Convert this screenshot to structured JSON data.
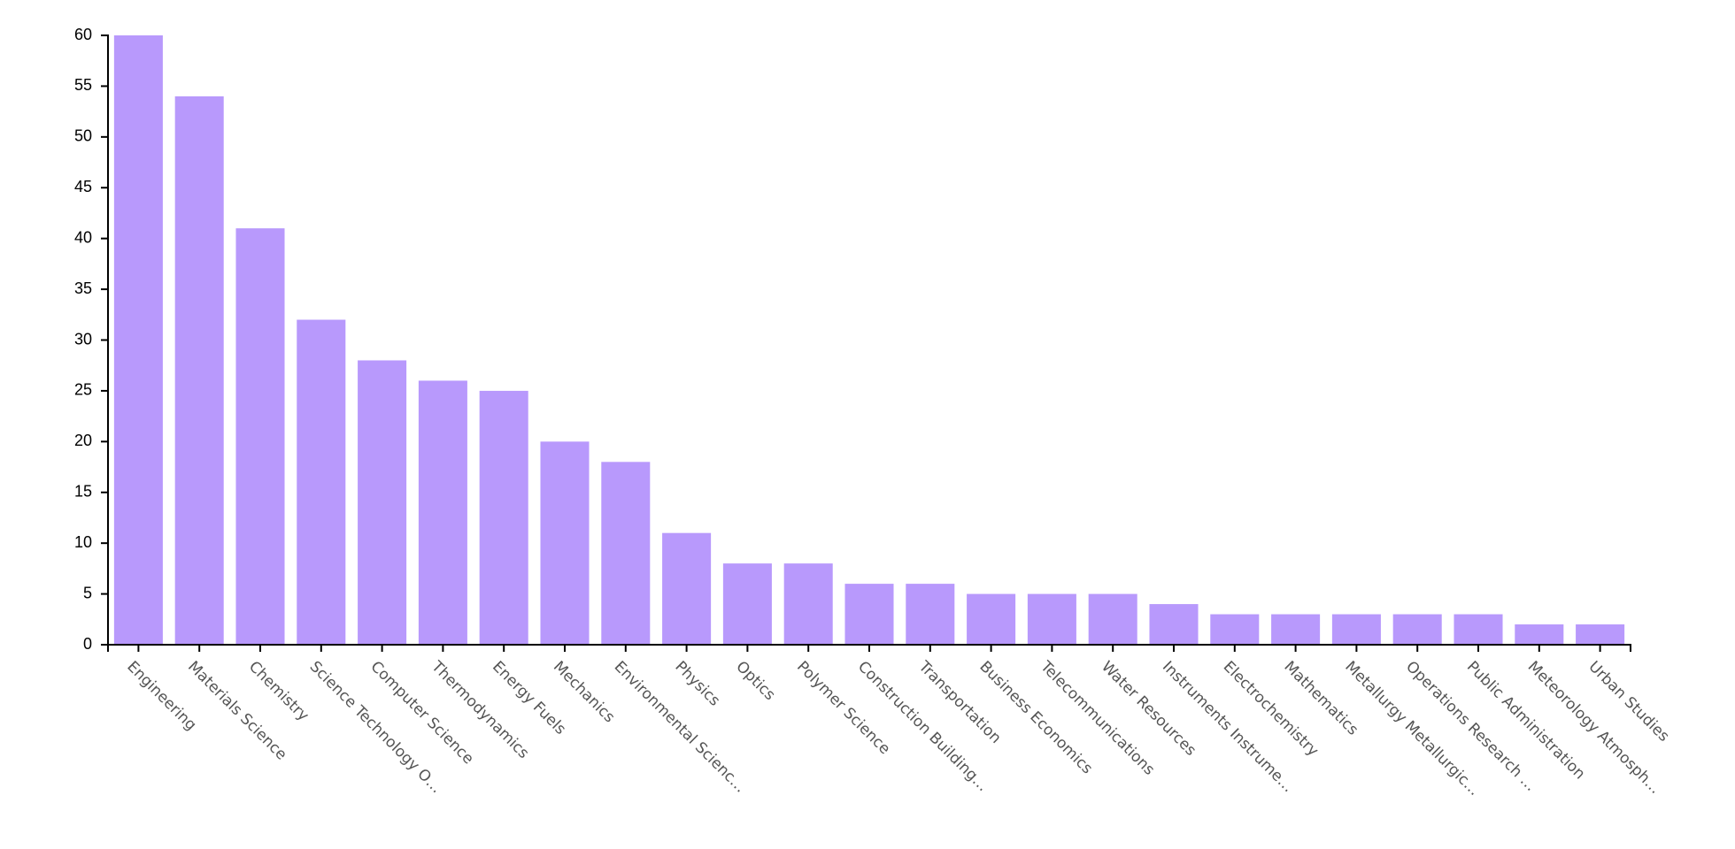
{
  "colors": {
    "bar": "#b899fc",
    "axis": "#000000",
    "tick_text": "#000000",
    "category_text": "#555555"
  },
  "chart_data": {
    "type": "bar",
    "categories": [
      "Engineering",
      "Materials Science",
      "Chemistry",
      "Science Technology O…",
      "Computer Science",
      "Thermodynamics",
      "Energy Fuels",
      "Mechanics",
      "Environmental Scienc…",
      "Physics",
      "Optics",
      "Polymer Science",
      "Construction Building…",
      "Transportation",
      "Business Economics",
      "Telecommunications",
      "Water Resources",
      "Instruments Instrume…",
      "Electrochemistry",
      "Mathematics",
      "Metallurgy Metallurgic…",
      "Operations Research …",
      "Public Administration",
      "Meteorology Atmosph…",
      "Urban Studies"
    ],
    "values": [
      60,
      54,
      41,
      32,
      28,
      26,
      25,
      20,
      18,
      11,
      8,
      8,
      6,
      6,
      5,
      5,
      5,
      4,
      3,
      3,
      3,
      3,
      3,
      2,
      2
    ],
    "ylim": [
      0,
      60
    ],
    "yticks": [
      "0",
      "5",
      "10",
      "15",
      "20",
      "25",
      "30",
      "35",
      "40",
      "45",
      "50",
      "55",
      "60"
    ],
    "title": "",
    "xlabel": "",
    "ylabel": "",
    "grid": false,
    "legend": "none"
  }
}
